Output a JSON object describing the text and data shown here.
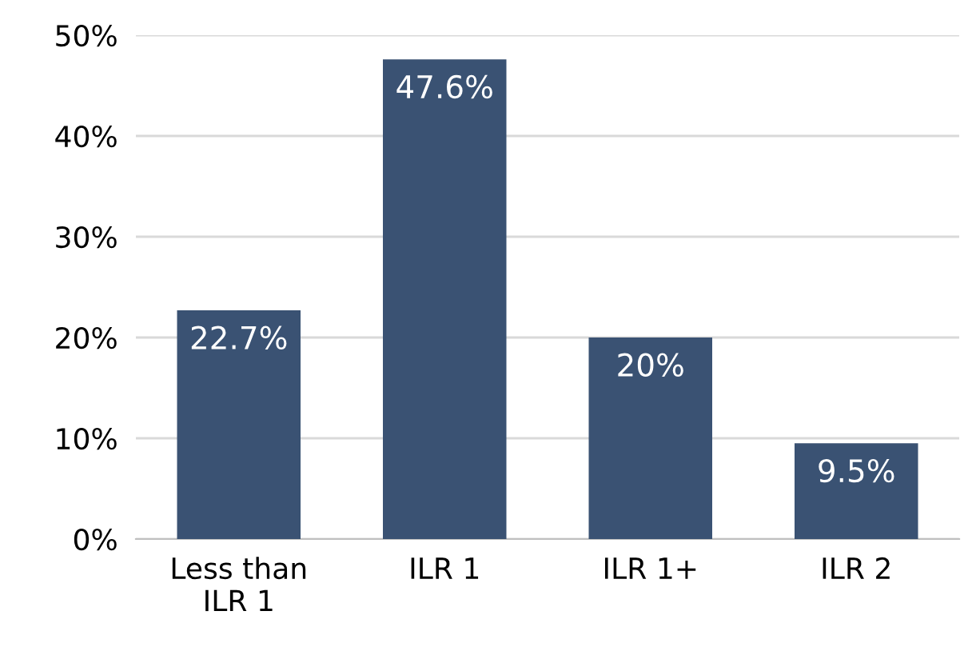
{
  "chart_data": {
    "type": "bar",
    "categories": [
      "Less than\nILR 1",
      "ILR 1",
      "ILR 1+",
      "ILR 2"
    ],
    "values": [
      22.7,
      47.6,
      20,
      9.5
    ],
    "value_labels": [
      "22.7%",
      "47.6%",
      "20%",
      "9.5%"
    ],
    "color": "#3a5273",
    "ylim": [
      0,
      50
    ],
    "yticks": [
      {
        "value": 0,
        "label": "0%"
      },
      {
        "value": 10,
        "label": "10%"
      },
      {
        "value": 20,
        "label": "20%"
      },
      {
        "value": 30,
        "label": "30%"
      },
      {
        "value": 40,
        "label": "40%"
      },
      {
        "value": 50,
        "label": "50%"
      }
    ],
    "grid": "y",
    "legend": false
  }
}
